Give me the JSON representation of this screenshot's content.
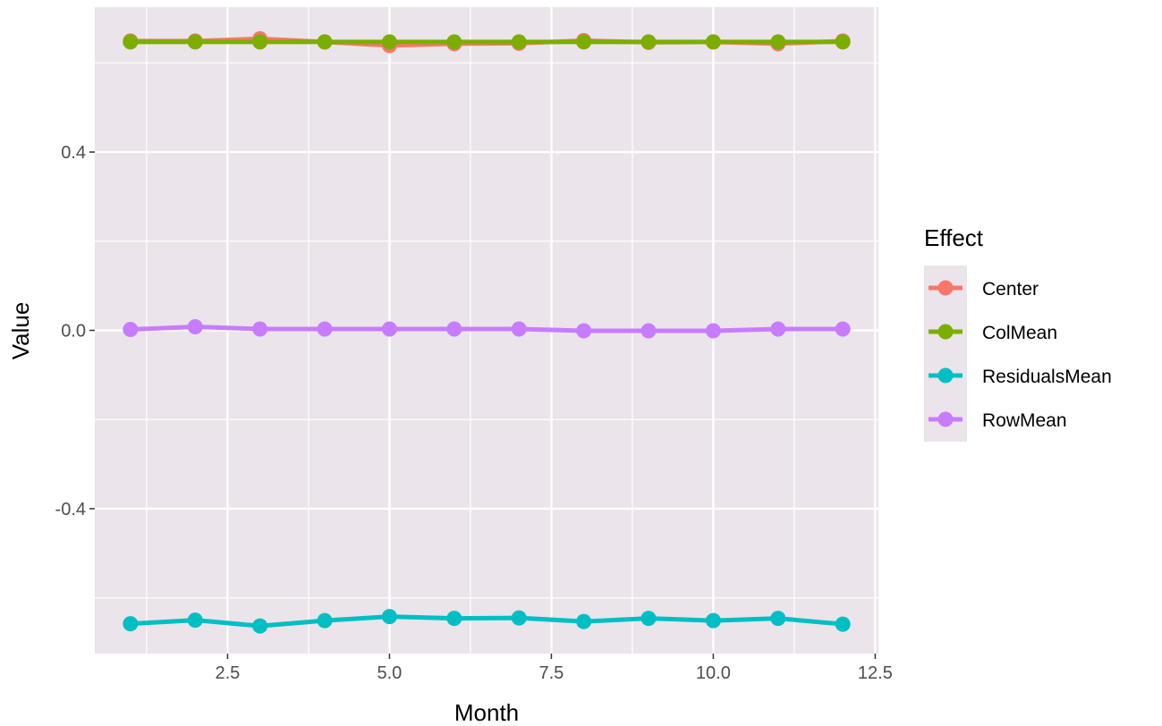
{
  "chart_data": {
    "type": "line",
    "xlabel": "Month",
    "ylabel": "Value",
    "xlim": [
      0.45,
      12.55
    ],
    "ylim": [
      -0.725,
      0.725
    ],
    "x_ticks": [
      2.5,
      5.0,
      7.5,
      10.0,
      12.5
    ],
    "x_tick_labels": [
      "2.5",
      "5.0",
      "7.5",
      "10.0",
      "12.5"
    ],
    "y_ticks": [
      -0.4,
      0.0,
      0.4
    ],
    "y_tick_labels": [
      "-0.4",
      "0.0",
      "0.4"
    ],
    "grid": true,
    "x": [
      1,
      2,
      3,
      4,
      5,
      6,
      7,
      8,
      9,
      10,
      11,
      12
    ],
    "series": [
      {
        "name": "Center",
        "color": "#F8766D",
        "values": [
          0.649,
          0.649,
          0.654,
          0.647,
          0.639,
          0.643,
          0.644,
          0.65,
          0.646,
          0.647,
          0.643,
          0.649
        ]
      },
      {
        "name": "ColMean",
        "color": "#7CAE00",
        "values": [
          0.647,
          0.647,
          0.647,
          0.647,
          0.647,
          0.647,
          0.647,
          0.647,
          0.647,
          0.647,
          0.647,
          0.647
        ]
      },
      {
        "name": "ResidualsMean",
        "color": "#00BFC4",
        "values": [
          -0.658,
          -0.65,
          -0.663,
          -0.651,
          -0.642,
          -0.646,
          -0.645,
          -0.653,
          -0.646,
          -0.651,
          -0.646,
          -0.659
        ]
      },
      {
        "name": "RowMean",
        "color": "#C77CFF",
        "values": [
          0.002,
          0.008,
          0.003,
          0.003,
          0.003,
          0.003,
          0.003,
          -0.001,
          -0.001,
          -0.001,
          0.003,
          0.003
        ]
      }
    ],
    "legend": {
      "title": "Effect",
      "position": "right"
    }
  }
}
